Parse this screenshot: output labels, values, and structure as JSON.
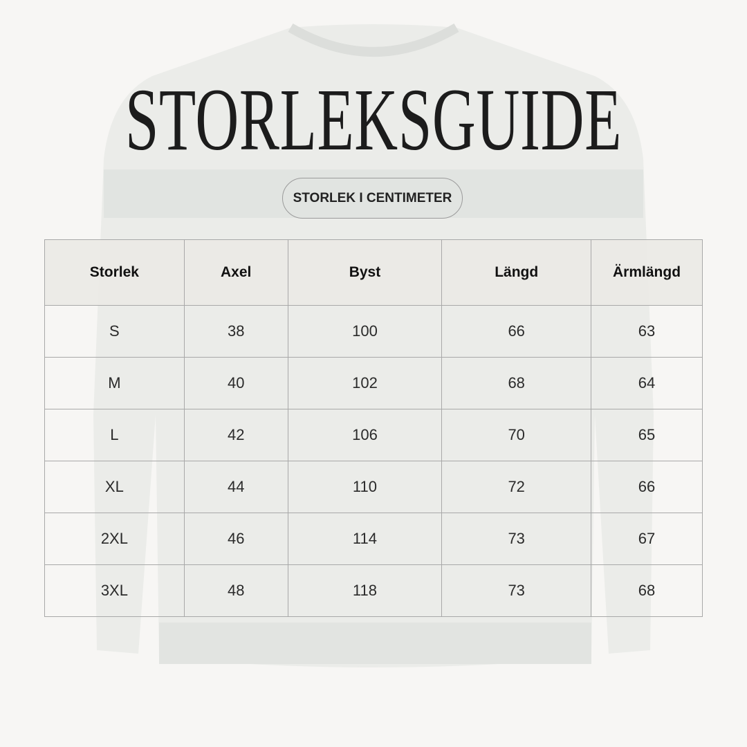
{
  "title": "STORLEKSGUIDE",
  "unit_badge": "STORLEK I CENTIMETER",
  "table": {
    "headers": [
      "Storlek",
      "Axel",
      "Byst",
      "Längd",
      "Ärmlängd"
    ],
    "rows": [
      [
        "S",
        "38",
        "100",
        "66",
        "63"
      ],
      [
        "M",
        "40",
        "102",
        "68",
        "64"
      ],
      [
        "L",
        "42",
        "106",
        "70",
        "65"
      ],
      [
        "XL",
        "44",
        "110",
        "72",
        "66"
      ],
      [
        "2XL",
        "46",
        "114",
        "73",
        "67"
      ],
      [
        "3XL",
        "48",
        "118",
        "73",
        "68"
      ]
    ]
  },
  "colors": {
    "background": "#f7f6f4",
    "header_bg": "#ebeae6",
    "border": "#a8a8a8"
  },
  "background_image": "sweater-icon"
}
